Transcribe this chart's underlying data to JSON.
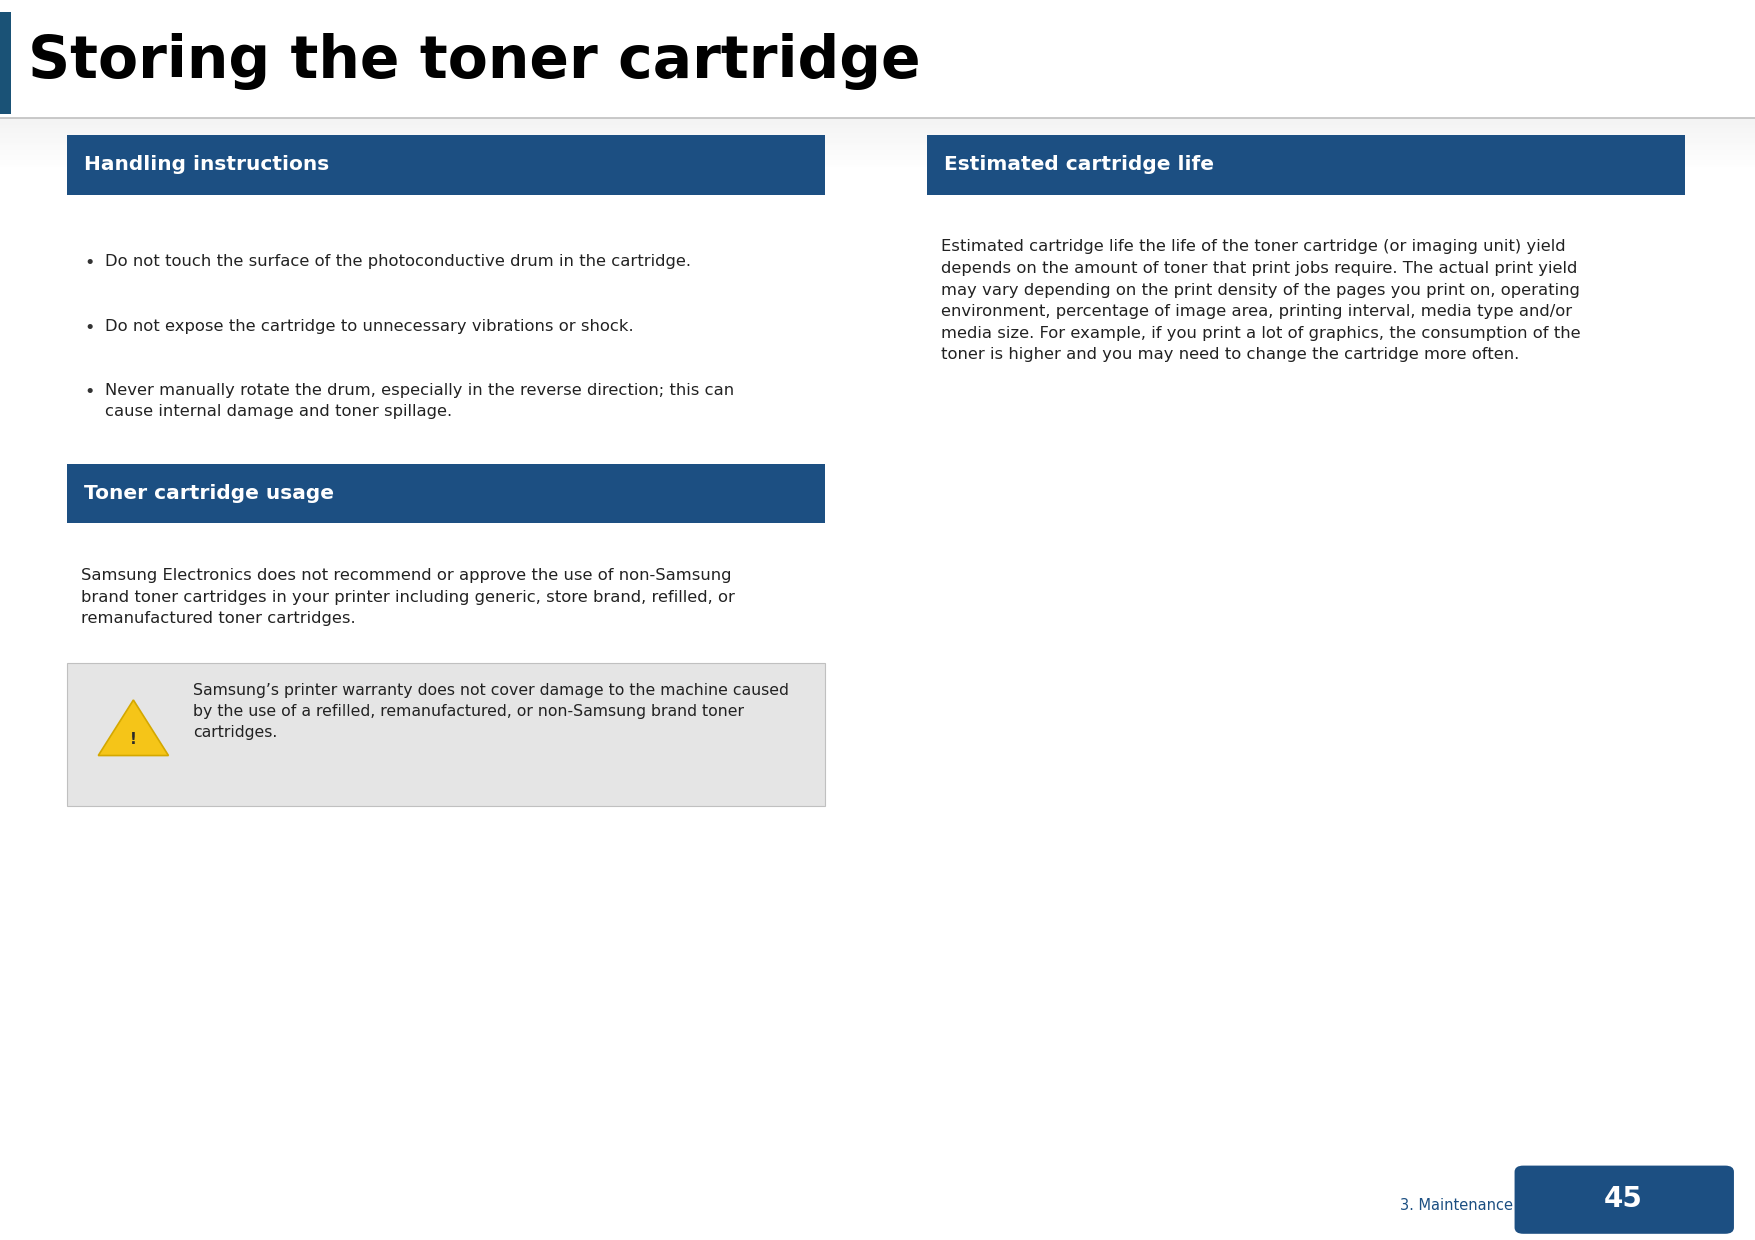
{
  "title": "Storing the toner cartridge",
  "title_fontsize": 42,
  "title_color": "#000000",
  "title_bar_color": "#1a5276",
  "background_color": "#ffffff",
  "page_number": "45",
  "page_label": "3. Maintenance",
  "section1_title": "Handling instructions",
  "section1_bullets": [
    "Do not touch the surface of the photoconductive drum in the cartridge.",
    "Do not expose the cartridge to unnecessary vibrations or shock.",
    "Never manually rotate the drum, especially in the reverse direction; this can\ncause internal damage and toner spillage."
  ],
  "section2_title": "Toner cartridge usage",
  "section2_body": "Samsung Electronics does not recommend or approve the use of non-Samsung\nbrand toner cartridges in your printer including generic, store brand, refilled, or\nremanufactured toner cartridges.",
  "section2_warning": "Samsung’s printer warranty does not cover damage to the machine caused\nby the use of a refilled, remanufactured, or non-Samsung brand toner\ncartridges.",
  "section3_title": "Estimated cartridge life",
  "section3_body": "Estimated cartridge life the life of the toner cartridge (or imaging unit) yield\ndepends on the amount of toner that print jobs require. The actual print yield\nmay vary depending on the print density of the pages you print on, operating\nenvironment, percentage of image area, printing interval, media type and/or\nmedia size. For example, if you print a lot of graphics, the consumption of the\ntoner is higher and you may need to change the cartridge more often.",
  "section_header_bg": "#1c4f82",
  "section_header_fg": "#ffffff",
  "warning_bg": "#e5e5e5",
  "body_fontsize": 11.8,
  "header_fontsize": 14.5,
  "lc": 0.038,
  "lw": 0.432,
  "rc": 0.528,
  "rw": 0.432
}
